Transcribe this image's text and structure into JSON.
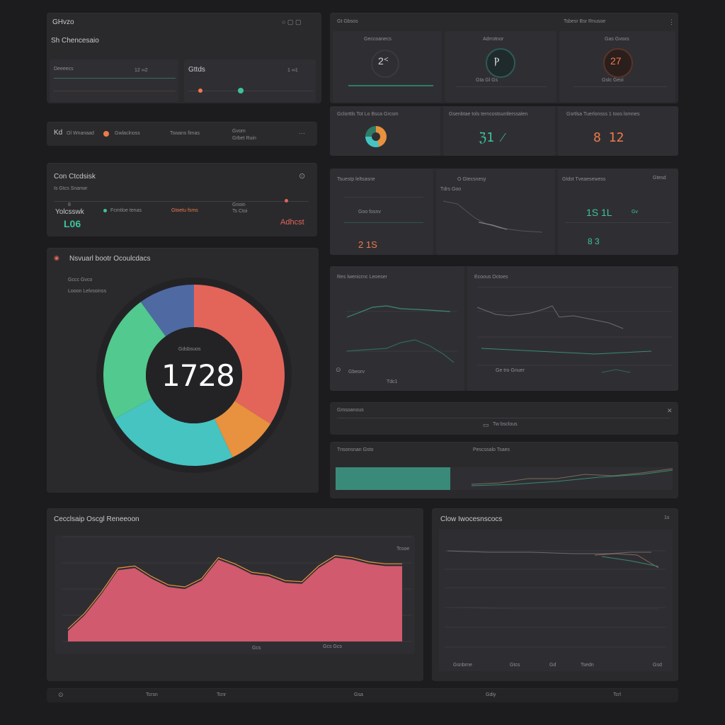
{
  "header": {
    "title": "GHvzo",
    "subtitle": "Sh Chencesaio",
    "controls": "○ ▢ ▢"
  },
  "top_left": {
    "card_a_label": "Deeeecs",
    "card_a_value": "12 ∞2",
    "card_b_label": "Gttds",
    "card_b_value": "1 ∞1"
  },
  "status_strip": {
    "label": "Kd",
    "item_a": "Ol Wnanaad",
    "item_b": "Gwlaclnoss",
    "item_c": "Tswans fimas",
    "item_d": "Gvom",
    "item_e": "Grbet Ruin"
  },
  "overview": {
    "title": "Con Ctcdsisk",
    "subtitle": "Is Gtcs Snanwr",
    "metric_label": "Yolcsswk",
    "metric_value": "L06",
    "legend_a": "Fcmtloe tenas",
    "legend_b": "Gtoetu fsms",
    "legend_c": "Gnoin",
    "value_right": "Adhcst",
    "small_a": "8",
    "small_b": "Ts Ctoi"
  },
  "donut_panel": {
    "title": "Nsvuarl bootr Ocoulcdacs",
    "line_a": "Gccc Gvco",
    "line_b": "Looon Lelvsoinss",
    "center_label": "Gdsbsuos",
    "center_value": "1728"
  },
  "gauges": {
    "header_left": "Gt Gbsos",
    "header_right": "Tsbesr Bsr Rnusoe",
    "g1_title": "Geccoanecs",
    "g1_value": "2ᑉ",
    "g2_title": "Adrrotnor",
    "g2_value": "Ⲣ",
    "g3_title": "Gas Gvoxs",
    "g3_value": "27",
    "g2_foot": "Gta Gl Gs",
    "g3_foot": "Gslc Geoi"
  },
  "mini_kpis": {
    "k1_title": "Gclorttls Tot Lo Bsca Grcsm",
    "k2_title": "Gsenbtae tols terncostsuntlerssalen",
    "k2_value": "ℨ1 ⁄",
    "k3_title": "Gsrtlsa Tuerlonsss 1 toos lomnes",
    "k3_value": "8 12"
  },
  "analysis": {
    "a_title": "Tsuestp leltsasne",
    "b_title": "O Gtecsnesy",
    "c_title": "Gtdst Tveaesewess",
    "c_right": "Gtesd",
    "a_value": "2 1S",
    "c_value_a": "1S  1L",
    "c_value_b": "8 3",
    "c_value_c": "Gv",
    "a_small": "Goo fosnv",
    "b_small": "Tdrs Goo"
  },
  "trends": {
    "left_title": "Res lwenicrnc Leoeser",
    "right_title": "Ecoous Octoes",
    "left_foot": "Gbeorv",
    "left_tick": "Tdc1",
    "right_legend": "Ge tro Gnuer"
  },
  "info_bar": {
    "title": "Gmsoanous",
    "message": "Tw bsclous"
  },
  "progress_panel": {
    "title": "Tnsonsnan Gsto",
    "subtitle": "Pescssalo Tsaes",
    "progress": 0.34
  },
  "bottom_left": {
    "title": "Cecclsaip Oscgl Reneeoon",
    "legend": "Tcsoe",
    "x_a": "Gcs",
    "x_b": "Gcs Gcs"
  },
  "bottom_right": {
    "title": "Clow Iwocesnscocs",
    "badge": "1s",
    "x_labels": [
      "Gsnbrne",
      "Gtcs",
      "Gd",
      "Tsedn",
      "Gsd"
    ]
  },
  "footer": {
    "a": "Tcrsn",
    "b": "Tcnr",
    "c": "Gsa",
    "d": "Gdiy",
    "e": "Tcrl"
  },
  "chart_data": [
    {
      "type": "pie",
      "categories": [
        "Red",
        "Orange",
        "Teal",
        "Green",
        "Blue"
      ],
      "values": [
        34,
        9,
        24,
        23,
        10
      ],
      "colors": [
        "#e3655a",
        "#e8913e",
        "#45c4c2",
        "#52c98e",
        "#4f6aa3"
      ],
      "center_value": "1728"
    },
    {
      "type": "area",
      "x": [
        0,
        1,
        2,
        3,
        4,
        5,
        6,
        7,
        8,
        9,
        10,
        11,
        12,
        13,
        14,
        15,
        16,
        17,
        18,
        19,
        20
      ],
      "values": [
        10,
        25,
        45,
        68,
        70,
        60,
        52,
        50,
        58,
        78,
        72,
        64,
        62,
        56,
        55,
        70,
        80,
        78,
        74,
        72,
        72
      ],
      "ylim": [
        0,
        100
      ],
      "color": "#d25a6e"
    }
  ],
  "colors": {
    "bg": "#1c1c1e",
    "panel": "#2a2a2d",
    "accent_green": "#3fc29a",
    "accent_orange": "#ef7a4a",
    "accent_red": "#e3655a",
    "accent_teal": "#45c4c2"
  }
}
